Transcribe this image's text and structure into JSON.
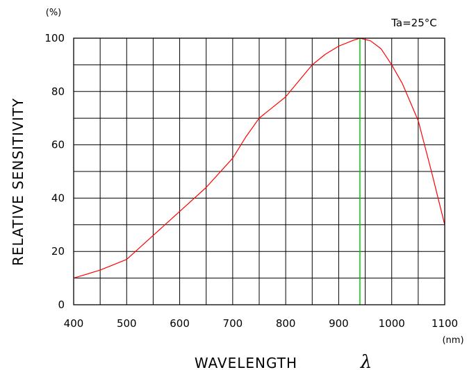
{
  "chart_data": {
    "type": "line",
    "title": "",
    "xlabel": "WAVELENGTH",
    "xlabel_symbol": "λ",
    "ylabel": "RELATIVE SENSITIVITY",
    "x_unit": "(nm)",
    "y_unit": "(%)",
    "condition": "Ta=25°C",
    "xlim": [
      400,
      1100
    ],
    "ylim": [
      0,
      100
    ],
    "x_ticks": [
      "400",
      "500",
      "600",
      "700",
      "800",
      "900",
      "1000",
      "1100"
    ],
    "y_ticks": [
      "0",
      "20",
      "40",
      "60",
      "80",
      "100"
    ],
    "grid": true,
    "peak_wavelength": 940,
    "series": [
      {
        "color": "#ff0000",
        "x": [
          400,
          450,
          500,
          550,
          600,
          650,
          700,
          725,
          750,
          775,
          800,
          825,
          850,
          875,
          900,
          925,
          940,
          960,
          980,
          1000,
          1020,
          1050,
          1075,
          1100
        ],
        "y": [
          10,
          13,
          17,
          26,
          35,
          44,
          55,
          63,
          70,
          74,
          78,
          84,
          90,
          94,
          97,
          99,
          100,
          99,
          96,
          90,
          83,
          69,
          50,
          30
        ]
      }
    ],
    "peak_line_color": "#00cc00"
  }
}
